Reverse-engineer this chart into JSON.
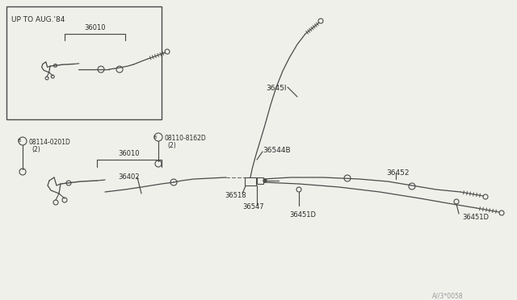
{
  "bg_color": "#f0f0eb",
  "line_color": "#4a4a4a",
  "text_color": "#2a2a2a",
  "title_bottom": "A//3*0058",
  "inset_label": "UP TO AUG.'84",
  "inset_part": "36010",
  "fig_w": 6.4,
  "fig_h": 3.72,
  "dpi": 100
}
